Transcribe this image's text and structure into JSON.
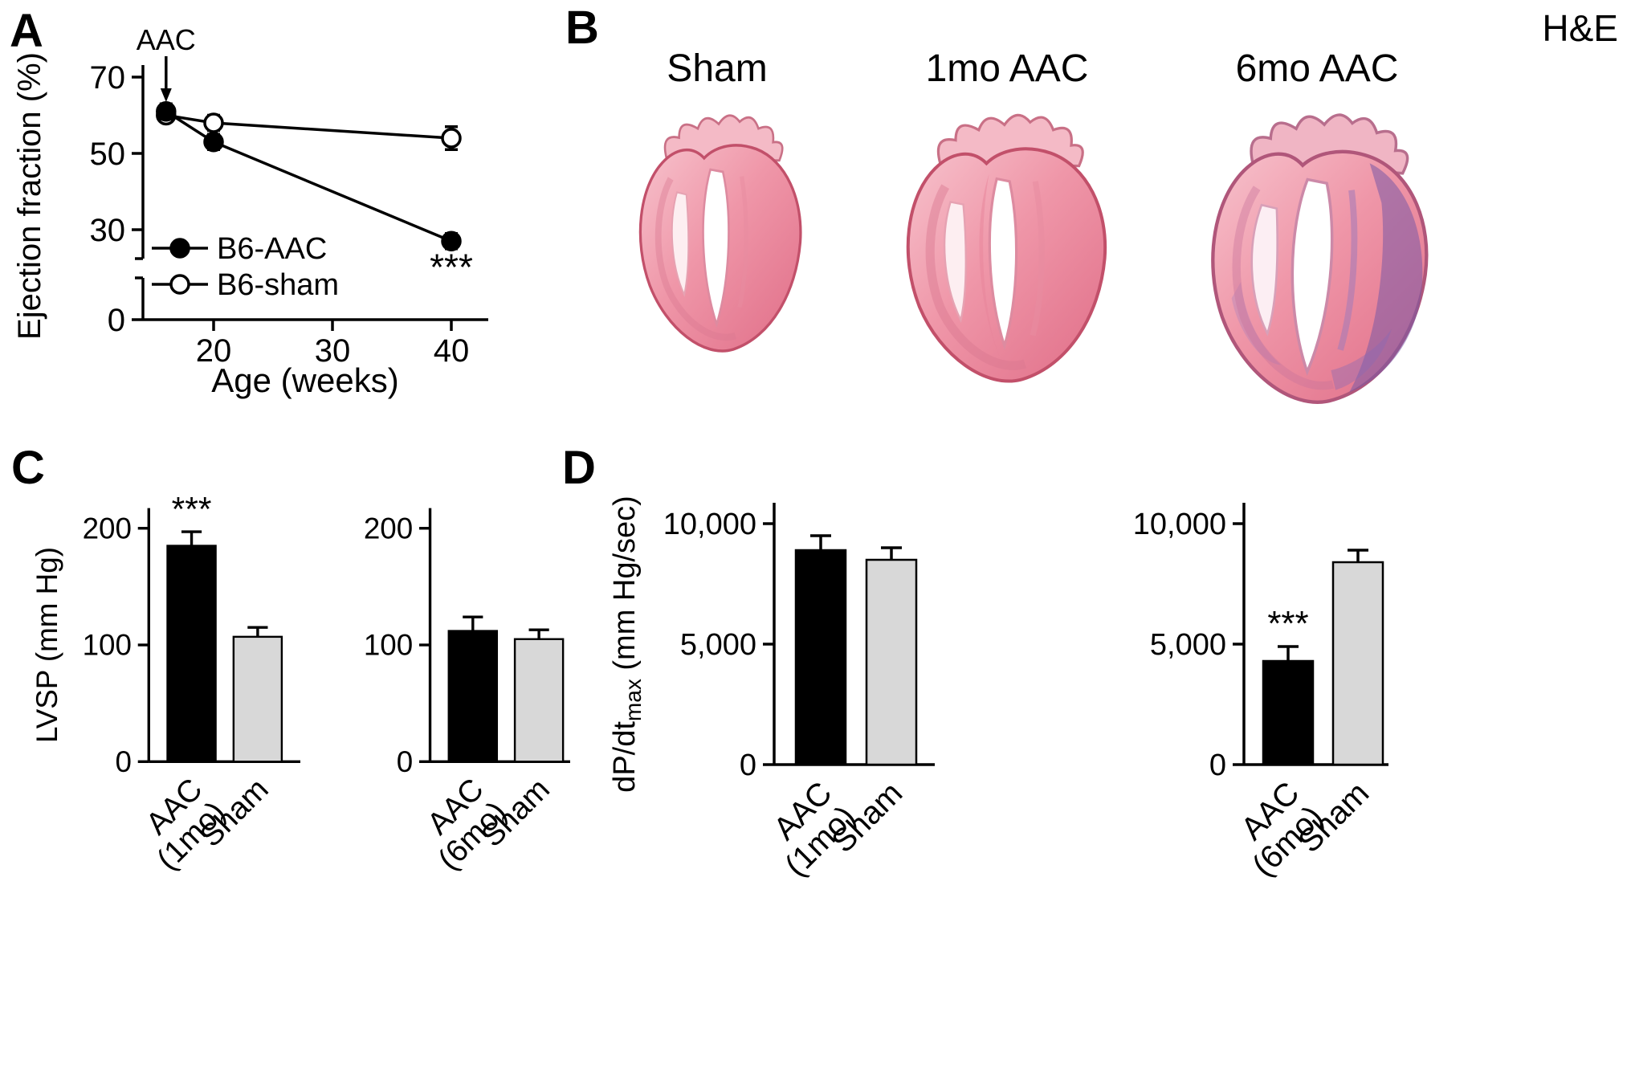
{
  "panels": {
    "A": {
      "label": "A"
    },
    "B": {
      "label": "B",
      "stain_label": "H&E",
      "images": [
        {
          "label": "Sham"
        },
        {
          "label": "1mo AAC"
        },
        {
          "label": "6mo AAC"
        }
      ]
    },
    "C": {
      "label": "C"
    },
    "D": {
      "label": "D"
    }
  },
  "chart_data": [
    {
      "id": "ejection-fraction-line",
      "type": "line",
      "xlabel": "Age (weeks)",
      "ylabel": "Ejection fraction (%)",
      "x_ticks": [
        20,
        30,
        40
      ],
      "y_ticks": [
        0,
        30,
        50,
        70
      ],
      "y_axis_break": [
        5,
        25
      ],
      "xlim": [
        14,
        44
      ],
      "ylim": [
        0,
        72
      ],
      "series": [
        {
          "name": "B6-sham",
          "marker": "open-circle",
          "x": [
            16,
            20,
            40
          ],
          "y": [
            60,
            58,
            54
          ],
          "yerr": [
            1.5,
            2,
            3
          ]
        },
        {
          "name": "B6-AAC",
          "marker": "filled-circle",
          "x": [
            16,
            20,
            40
          ],
          "y": [
            61,
            53,
            27
          ],
          "yerr": [
            2,
            2,
            2
          ]
        }
      ],
      "annotations": [
        {
          "type": "arrow-label",
          "text": "AAC",
          "x": 16
        },
        {
          "type": "sig",
          "text": "***",
          "x": 40,
          "below_series": "B6-AAC"
        }
      ],
      "legend_position": "lower-left"
    },
    {
      "id": "lvsp-1mo",
      "type": "bar",
      "ylabel": "LVSP (mm Hg)",
      "categories": [
        "AAC\n(1mo)",
        "Sham"
      ],
      "values": [
        185,
        107
      ],
      "errors": [
        12,
        8
      ],
      "sig": [
        "***",
        ""
      ],
      "y_ticks": [
        0,
        100,
        200
      ],
      "y_tick_labels": [
        "0",
        "100",
        "200"
      ],
      "ylim": [
        0,
        210
      ],
      "bar_colors": [
        "#000000",
        "#d8d8d8"
      ]
    },
    {
      "id": "lvsp-6mo",
      "type": "bar",
      "ylabel": "",
      "categories": [
        "AAC\n(6mo)",
        "Sham"
      ],
      "values": [
        112,
        105
      ],
      "errors": [
        12,
        8
      ],
      "sig": [
        "",
        ""
      ],
      "y_ticks": [
        0,
        100,
        200
      ],
      "y_tick_labels": [
        "0",
        "100",
        "200"
      ],
      "ylim": [
        0,
        210
      ],
      "bar_colors": [
        "#000000",
        "#d8d8d8"
      ]
    },
    {
      "id": "dpdt-1mo",
      "type": "bar",
      "ylabel": "dP/dtmax (mm Hg/sec)",
      "ylabel_parts": [
        {
          "t": "dP/dt"
        },
        {
          "t": "max",
          "sub": true
        },
        {
          "t": " (mm Hg/sec)"
        }
      ],
      "categories": [
        "AAC\n(1mo)",
        "Sham"
      ],
      "values": [
        8900,
        8500
      ],
      "errors": [
        600,
        500
      ],
      "sig": [
        "",
        ""
      ],
      "y_ticks": [
        0,
        5000,
        10000
      ],
      "y_tick_labels": [
        "0",
        "5,000",
        "10,000"
      ],
      "ylim": [
        0,
        10500
      ],
      "bar_colors": [
        "#000000",
        "#d8d8d8"
      ]
    },
    {
      "id": "dpdt-6mo",
      "type": "bar",
      "ylabel": "",
      "categories": [
        "AAC\n(6mo)",
        "Sham"
      ],
      "values": [
        4300,
        8400
      ],
      "errors": [
        600,
        500
      ],
      "sig": [
        "***",
        ""
      ],
      "y_ticks": [
        0,
        5000,
        10000
      ],
      "y_tick_labels": [
        "0",
        "5,000",
        "10,000"
      ],
      "ylim": [
        0,
        10500
      ],
      "bar_colors": [
        "#000000",
        "#d8d8d8"
      ]
    }
  ]
}
